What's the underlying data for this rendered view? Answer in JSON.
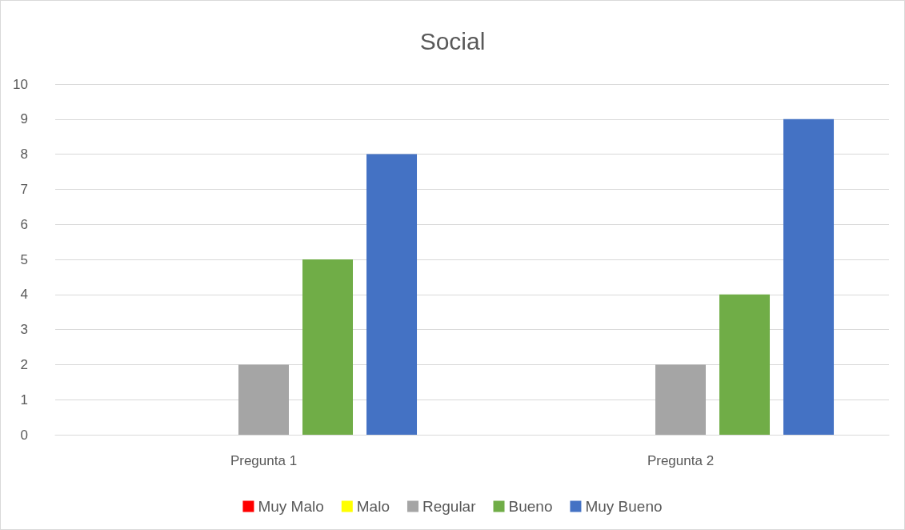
{
  "chart_data": {
    "type": "bar",
    "title": "Social",
    "categories": [
      "Pregunta 1",
      "Pregunta 2"
    ],
    "series": [
      {
        "name": "Muy Malo",
        "color": "#ff0000",
        "values": [
          0,
          0
        ]
      },
      {
        "name": "Malo",
        "color": "#ffff00",
        "values": [
          0,
          0
        ]
      },
      {
        "name": "Regular",
        "color": "#a5a5a5",
        "values": [
          2,
          2
        ]
      },
      {
        "name": "Bueno",
        "color": "#70ad47",
        "values": [
          5,
          4
        ]
      },
      {
        "name": "Muy Bueno",
        "color": "#4472c4",
        "values": [
          8,
          9
        ]
      }
    ],
    "ylim": [
      0,
      10
    ],
    "yticks": [
      0,
      1,
      2,
      3,
      4,
      5,
      6,
      7,
      8,
      9,
      10
    ],
    "grid": "y",
    "legend": "bottom"
  }
}
